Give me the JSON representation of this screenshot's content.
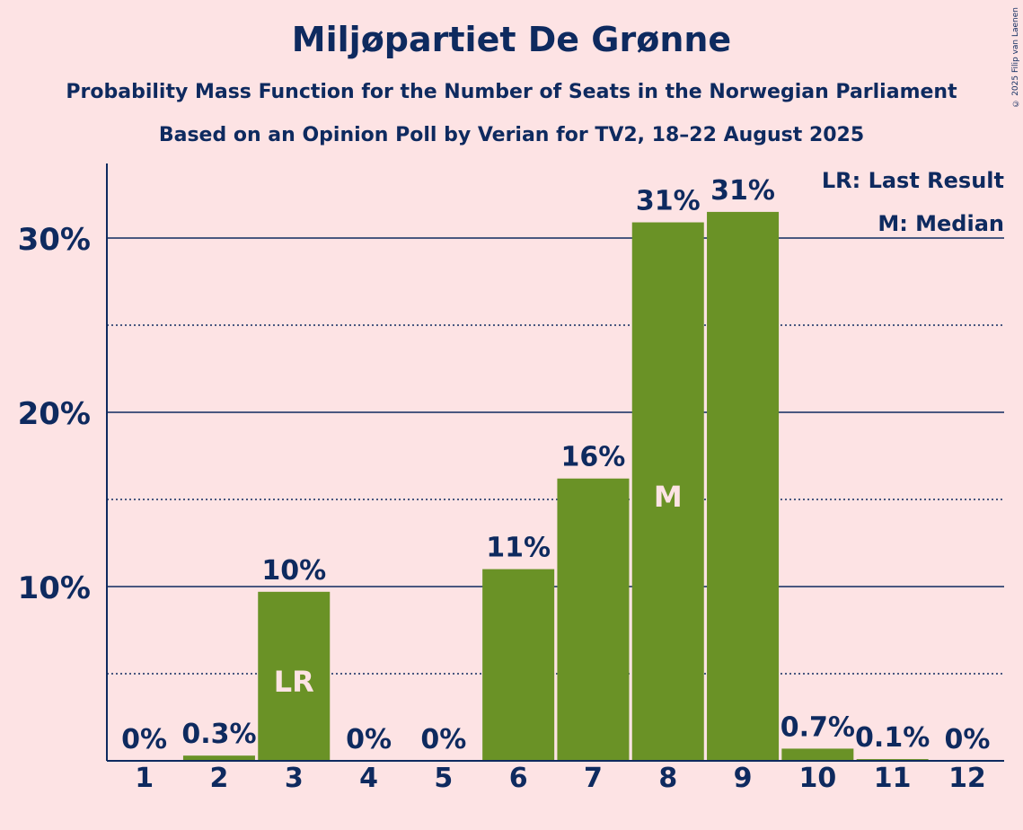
{
  "title": "Miljøpartiet De Grønne",
  "subtitle1": "Probability Mass Function for the Number of Seats in the Norwegian Parliament",
  "subtitle2": "Based on an Opinion Poll by Verian for TV2, 18–22 August 2025",
  "copyright": "© 2025 Filip van Laenen",
  "legend": {
    "lr": "LR: Last Result",
    "m": "M: Median"
  },
  "colors": {
    "background": "#FDE3E4",
    "bar": "#6A9226",
    "text": "#0E2A5F",
    "inbar_text": "#FDE3E4"
  },
  "chart_data": {
    "type": "bar",
    "categories": [
      "1",
      "2",
      "3",
      "4",
      "5",
      "6",
      "7",
      "8",
      "9",
      "10",
      "11",
      "12"
    ],
    "values": [
      0,
      0.3,
      9.7,
      0,
      0,
      11.0,
      16.2,
      30.9,
      31.5,
      0.7,
      0.1,
      0
    ],
    "data_labels": [
      "0%",
      "0.3%",
      "10%",
      "0%",
      "0%",
      "11%",
      "16%",
      "31%",
      "31%",
      "0.7%",
      "0.1%",
      "0%"
    ],
    "ylim": [
      0,
      34
    ],
    "yticks": [
      10,
      20,
      30
    ],
    "ytick_labels": [
      "10%",
      "20%",
      "30%"
    ],
    "minor_gridlines": [
      5,
      15,
      25
    ],
    "markers": [
      {
        "category": "3",
        "label": "LR"
      },
      {
        "category": "8",
        "label": "M"
      }
    ],
    "legend_position": "top-right",
    "grid": true
  }
}
